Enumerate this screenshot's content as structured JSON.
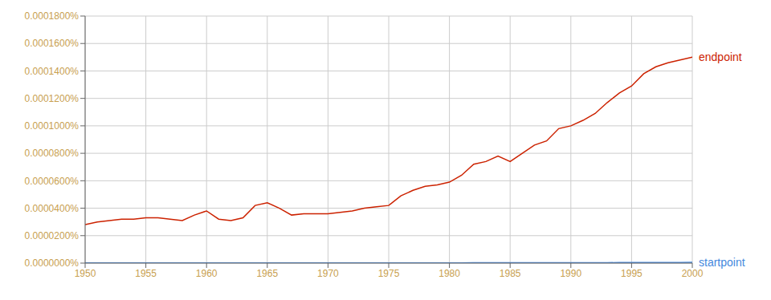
{
  "chart_data": {
    "type": "line",
    "x": [
      1950,
      1951,
      1952,
      1953,
      1954,
      1955,
      1956,
      1957,
      1958,
      1959,
      1960,
      1961,
      1962,
      1963,
      1964,
      1965,
      1966,
      1967,
      1968,
      1969,
      1970,
      1971,
      1972,
      1973,
      1974,
      1975,
      1976,
      1977,
      1978,
      1979,
      1980,
      1981,
      1982,
      1983,
      1984,
      1985,
      1986,
      1987,
      1988,
      1989,
      1990,
      1991,
      1992,
      1993,
      1994,
      1995,
      1996,
      1997,
      1998,
      1999,
      2000
    ],
    "series": [
      {
        "name": "endpoint",
        "color": "#cc2200",
        "values": [
          2.8e-07,
          3e-07,
          3.1e-07,
          3.2e-07,
          3.2e-07,
          3.3e-07,
          3.3e-07,
          3.2e-07,
          3.1e-07,
          3.5e-07,
          3.8e-07,
          3.2e-07,
          3.1e-07,
          3.3e-07,
          4.2e-07,
          4.4e-07,
          4e-07,
          3.5e-07,
          3.6e-07,
          3.6e-07,
          3.6e-07,
          3.7e-07,
          3.8e-07,
          4e-07,
          4.1e-07,
          4.2e-07,
          4.9e-07,
          5.3e-07,
          5.6e-07,
          5.7e-07,
          5.9e-07,
          6.4e-07,
          7.2e-07,
          7.4e-07,
          7.8e-07,
          7.4e-07,
          8e-07,
          8.6e-07,
          8.9e-07,
          9.8e-07,
          1e-06,
          1.04e-06,
          1.09e-06,
          1.17e-06,
          1.24e-06,
          1.29e-06,
          1.38e-06,
          1.43e-06,
          1.46e-06,
          1.48e-06,
          1.5e-06
        ]
      },
      {
        "name": "startpoint",
        "color": "#4488dd",
        "values": [
          1e-09,
          1e-09,
          1e-09,
          1e-09,
          1e-09,
          1e-09,
          1e-09,
          1e-09,
          1e-09,
          1e-09,
          1e-09,
          1e-09,
          1e-09,
          1e-09,
          1e-09,
          1e-09,
          1e-09,
          1e-09,
          1e-09,
          1e-09,
          1e-09,
          1e-09,
          1e-09,
          1e-09,
          1e-09,
          1e-09,
          1e-09,
          1e-09,
          1e-09,
          1e-09,
          2e-09,
          2e-09,
          2.5e-09,
          2.8e-09,
          3e-09,
          3e-09,
          2.5e-09,
          2.5e-09,
          2.5e-09,
          2.5e-09,
          2.8e-09,
          3e-09,
          3.5e-09,
          3.5e-09,
          3.8e-09,
          4e-09,
          4.2e-09,
          4.5e-09,
          4.8e-09,
          5e-09,
          5.5e-09
        ]
      }
    ],
    "xlim": [
      1950,
      2000
    ],
    "xticks": [
      1950,
      1955,
      1960,
      1965,
      1970,
      1975,
      1980,
      1985,
      1990,
      1995,
      2000
    ],
    "ylim": [
      0,
      1.8e-06
    ],
    "yticks": [
      {
        "value": 0.0,
        "label": "0.0000000%"
      },
      {
        "value": 2e-07,
        "label": "0.0000200%"
      },
      {
        "value": 4e-07,
        "label": "0.0000400%"
      },
      {
        "value": 6e-07,
        "label": "0.0000600%"
      },
      {
        "value": 8e-07,
        "label": "0.0000800%"
      },
      {
        "value": 1e-06,
        "label": "0.0001000%"
      },
      {
        "value": 1.2e-06,
        "label": "0.0001200%"
      },
      {
        "value": 1.4e-06,
        "label": "0.0001400%"
      },
      {
        "value": 1.6e-06,
        "label": "0.0001600%"
      },
      {
        "value": 1.8e-06,
        "label": "0.0001800%"
      }
    ],
    "grid": true
  }
}
